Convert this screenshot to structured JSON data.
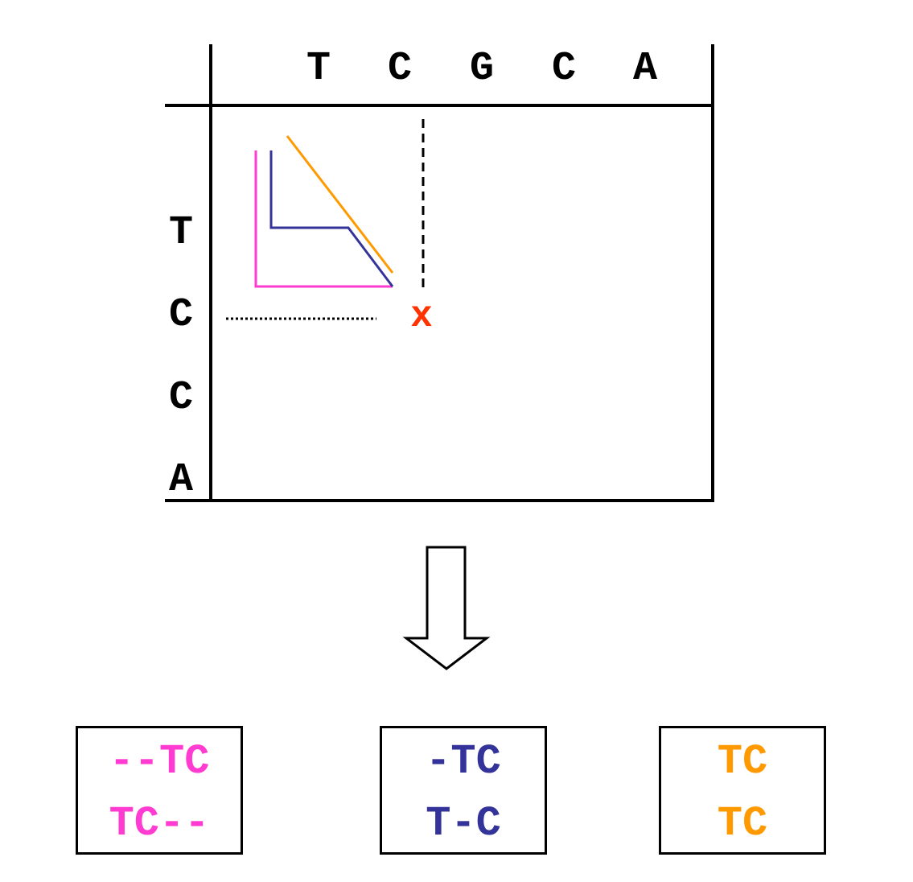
{
  "matrix": {
    "column_sequence": [
      "T",
      "C",
      "G",
      "C",
      "A"
    ],
    "row_sequence": [
      "T",
      "C",
      "C",
      "A"
    ],
    "endpoint_marker": "x"
  },
  "colors": {
    "magenta": "#ff3bd1",
    "blue": "#33339a",
    "orange": "#ff9900",
    "red": "#ff3300",
    "black": "#000000"
  },
  "alignments": [
    {
      "color": "magenta",
      "line1": "--TC",
      "line2": "TC--"
    },
    {
      "color": "blue",
      "line1": "-TC",
      "line2": "T-C"
    },
    {
      "color": "orange",
      "line1": "TC",
      "line2": "TC"
    }
  ]
}
